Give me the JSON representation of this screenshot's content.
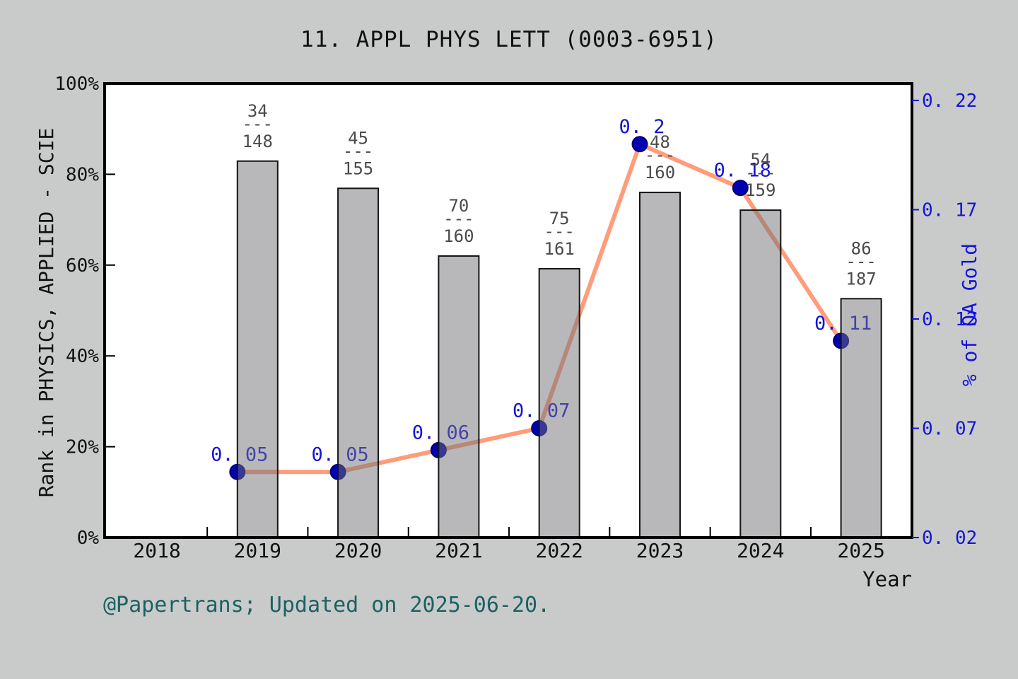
{
  "title": "11. APPL PHYS LETT (0003-6951)",
  "caption": "@Papertrans; Updated on 2025-06-20.",
  "chart_data": {
    "type": "bar",
    "subtype": "dual-axis bar + line with markers",
    "title": "11. APPL PHYS LETT (0003-6951)",
    "xlabel": "Year",
    "x_axis": {
      "ticks": [
        2018,
        2019,
        2020,
        2021,
        2022,
        2023,
        2024,
        2025
      ],
      "tick_labels": [
        "2018",
        "2019",
        "2020",
        "2021",
        "2022",
        "2023",
        "2024",
        "2025"
      ],
      "minor_tick_positions": [
        2018.5,
        2019.5,
        2020.5,
        2021.5,
        2022.5,
        2023.5,
        2024.5
      ],
      "range": [
        2017.48,
        2025.5
      ]
    },
    "left_axis": {
      "label": "Rank in PHYSICS, APPLIED - SCIE",
      "tick_labels": [
        "0%",
        "20%",
        "40%",
        "60%",
        "80%",
        "100%"
      ],
      "tick_values": [
        0,
        20,
        40,
        60,
        80,
        100
      ],
      "range": [
        0,
        100
      ]
    },
    "right_axis": {
      "label": "% of OA Gold",
      "tick_labels": [
        "0. 02",
        "0. 07",
        "0. 12",
        "0. 17",
        "0. 22"
      ],
      "tick_values": [
        0.02,
        0.07,
        0.12,
        0.17,
        0.22
      ],
      "range": [
        0.02,
        0.2278
      ]
    },
    "categories": [
      2019,
      2020,
      2021,
      2022,
      2023,
      2024,
      2025
    ],
    "series": [
      {
        "name": "Rank in PHYSICS, APPLIED - SCIE (bars, left axis)",
        "axis": "left",
        "values_percent": [
          82.9,
          76.9,
          62.0,
          59.2,
          76.0,
          72.1,
          52.6
        ],
        "rank_fractions": [
          {
            "numerator": "34",
            "separator": "---",
            "denominator": "148"
          },
          {
            "numerator": "45",
            "separator": "---",
            "denominator": "155"
          },
          {
            "numerator": "70",
            "separator": "---",
            "denominator": "160"
          },
          {
            "numerator": "75",
            "separator": "---",
            "denominator": "161"
          },
          {
            "numerator": "48",
            "separator": "---",
            "denominator": "160"
          },
          {
            "numerator": "54",
            "separator": "---",
            "denominator": "159"
          },
          {
            "numerator": "86",
            "separator": "---",
            "denominator": "187"
          }
        ]
      },
      {
        "name": "% of OA Gold (line with dots, right axis)",
        "axis": "right",
        "values": [
          0.05,
          0.05,
          0.06,
          0.07,
          0.2,
          0.18,
          0.11
        ],
        "point_labels": [
          "0. 05",
          "0. 05",
          "0. 06",
          "0. 07",
          "0. 2",
          "0. 18",
          "0. 11"
        ]
      }
    ],
    "legend": "none",
    "grid": "off",
    "colors": {
      "figure_background": "#c9cbcb",
      "plot_background": "#ffffff",
      "axis_border": "#000000",
      "bar_fill_rgba": "rgba(114,114,118,0.5)",
      "bar_stroke": "#141414",
      "line": "#ff9c79",
      "dot_fill": "#0000b2",
      "dot_stroke": "#00007a",
      "blue_labels": "#1414d8",
      "fraction_labels": "#4b4b4b",
      "caption_text": "#1c6161",
      "black_text": "#111111"
    }
  }
}
